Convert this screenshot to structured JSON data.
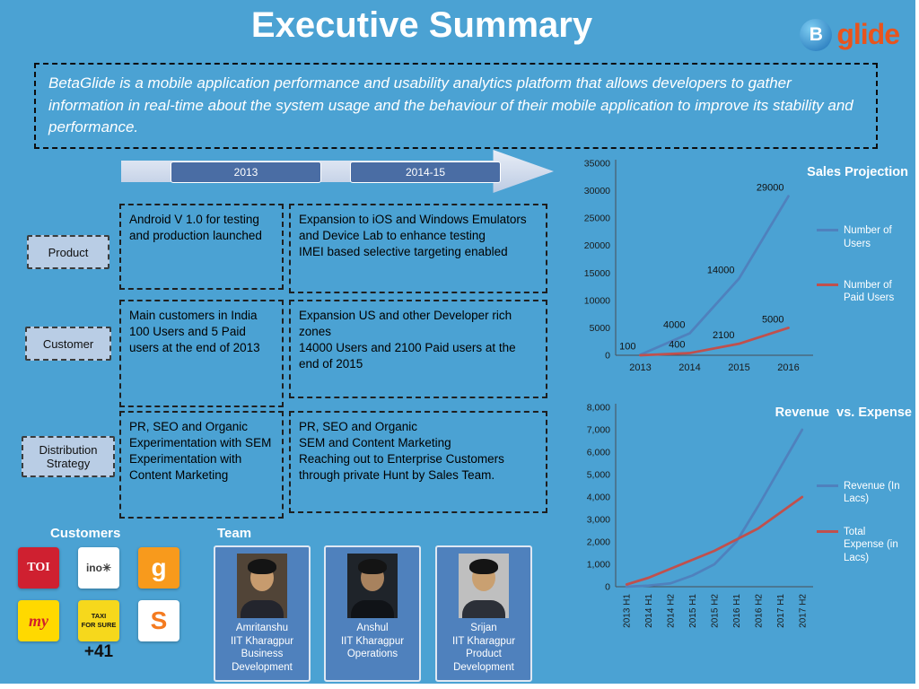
{
  "page": {
    "title": "Executive Summary",
    "brand": {
      "name": "glide",
      "icon_letter": "B"
    },
    "description": "BetaGlide is a mobile application performance and usability analytics platform that allows developers to gather information in real-time about the system usage and the behaviour of their mobile application to improve its stability and performance."
  },
  "timeline": {
    "period1": "2013",
    "period2": "2014-15"
  },
  "matrix": {
    "labels": {
      "product": "Product",
      "customer": "Customer",
      "distribution": "Distribution Strategy"
    },
    "cells": {
      "product_2013": "Android V 1.0 for testing and production launched",
      "product_2014": "Expansion to iOS and Windows Emulators and Device Lab to enhance testing\nIMEI based selective targeting enabled",
      "customer_2013": "Main customers in India\n100 Users and 5 Paid users at the end of 2013",
      "customer_2014": "Expansion  US and other Developer rich zones\n14000 Users and 2100 Paid users at the end of 2015",
      "distribution_2013": "PR, SEO and Organic\nExperimentation with SEM\nExperimentation with Content Marketing",
      "distribution_2014": "PR, SEO and Organic\nSEM and Content Marketing\nReaching out to Enterprise Customers through private Hunt by Sales Team."
    }
  },
  "customers": {
    "heading": "Customers",
    "more": "+41",
    "logos": [
      {
        "name": "times-of-india",
        "text": "TOI",
        "bg": "#cf2030",
        "fg": "#ffffff"
      },
      {
        "name": "inox",
        "text": "ino✳",
        "bg": "#ffffff",
        "fg": "#3c3c3c"
      },
      {
        "name": "guruji",
        "text": "g",
        "bg": "#f89a1c",
        "fg": "#ffffff"
      },
      {
        "name": "my",
        "text": "my",
        "bg": "#ffd900",
        "fg": "#d1202a"
      },
      {
        "name": "taxiforsure",
        "text": "TAXI\nFOR SURE",
        "bg": "#f6d81c",
        "fg": "#141414"
      },
      {
        "name": "s-logo",
        "text": "S",
        "bg": "#ffffff",
        "fg": "#f47b20"
      }
    ]
  },
  "team": {
    "heading": "Team",
    "members": [
      {
        "text": "Amritanshu\nIIT Kharagpur\nBusiness\nDevelopment"
      },
      {
        "text": "Anshul\nIIT Kharagpur\nOperations"
      },
      {
        "text": "Srijan\nIIT Kharagpur\nProduct\nDevelopment"
      }
    ]
  },
  "colors": {
    "background": "#4BA2D3",
    "accent_blue": "#4F81BD",
    "accent_red": "#C0504D",
    "timeline_pill": "#4A6DA4",
    "label_box": "#B9CDE5"
  },
  "chart_data": [
    {
      "type": "line",
      "title": "Sales Projection",
      "categories": [
        "2013",
        "2014",
        "2015",
        "2016"
      ],
      "ylim": [
        0,
        35000
      ],
      "ytick": 5000,
      "ytick_labels": [
        "0",
        "5000",
        "10000",
        "15000",
        "20000",
        "25000",
        "30000",
        "35000"
      ],
      "x_label_rotation": 0,
      "legend_position": "right",
      "grid": false,
      "series": [
        {
          "name": "Number of Users",
          "color": "#4F81BD",
          "values": [
            100,
            4000,
            14000,
            29000
          ],
          "labels": [
            "100",
            "4000",
            "14000",
            "29000"
          ]
        },
        {
          "name": "Number of Paid Users",
          "color": "#C0504D",
          "values": [
            5,
            400,
            2100,
            5000
          ],
          "labels": [
            null,
            "400",
            "2100",
            "5000"
          ]
        }
      ]
    },
    {
      "type": "line",
      "title": "Revenue  vs. Expense",
      "categories": [
        "2013 H1",
        "2014 H1",
        "2014 H2",
        "2015 H1",
        "2015 H2",
        "2016 H1",
        "2016 H2",
        "2017 H1",
        "2017 H2"
      ],
      "ylim": [
        0,
        8000
      ],
      "ytick": 1000,
      "ytick_labels": [
        "0",
        "1,000",
        "2,000",
        "3,000",
        "4,000",
        "5,000",
        "6,000",
        "7,000",
        "8,000"
      ],
      "x_label_rotation": -90,
      "legend_position": "right",
      "grid": false,
      "series": [
        {
          "name": "Revenue (In Lacs)",
          "color": "#4F81BD",
          "values": [
            0,
            50,
            150,
            500,
            1000,
            2000,
            3600,
            5300,
            7000
          ]
        },
        {
          "name": "Total Expense (in Lacs)",
          "color": "#C0504D",
          "values": [
            100,
            400,
            800,
            1200,
            1600,
            2100,
            2600,
            3300,
            4000
          ]
        }
      ]
    }
  ]
}
